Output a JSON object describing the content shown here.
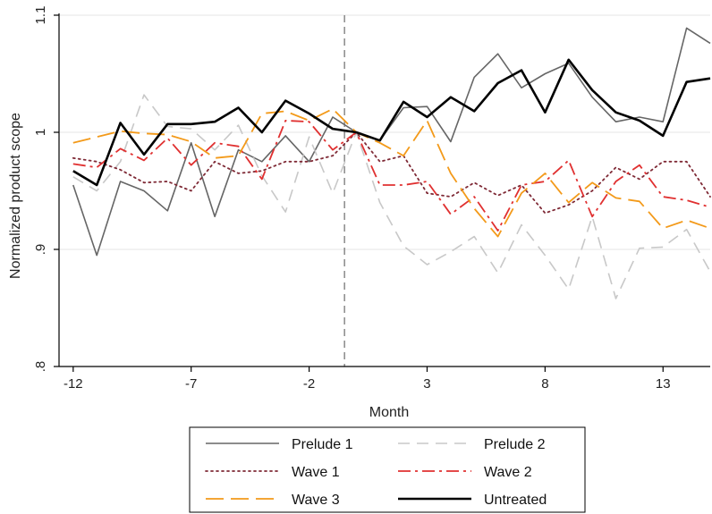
{
  "chart_data": {
    "type": "line",
    "title": "",
    "xlabel": "Month",
    "ylabel": "Normalized product scope",
    "xlim": [
      -12.6,
      15
    ],
    "ylim": [
      0.8,
      1.1
    ],
    "xticks": [
      -12,
      -7,
      -2,
      3,
      8,
      13
    ],
    "xtick_labels": [
      "-12",
      "-7",
      "-2",
      "3",
      "8",
      "13"
    ],
    "yticks": [
      0.8,
      0.9,
      1.0,
      1.1
    ],
    "ytick_labels": [
      ".8",
      ".9",
      "1",
      "1.1"
    ],
    "reference_line_x": -0.5,
    "grid": "horizontal",
    "legend_position": "bottom",
    "x": [
      -12,
      -11,
      -10,
      -9,
      -8,
      -7,
      -6,
      -5,
      -4,
      -3,
      -2,
      -1,
      0,
      1,
      2,
      3,
      4,
      5,
      6,
      7,
      8,
      9,
      10,
      11,
      12,
      13,
      14,
      15
    ],
    "series": [
      {
        "name": "Prelude 1",
        "color": "#666666",
        "style": "solid",
        "values": [
          0.955,
          0.895,
          0.958,
          0.95,
          0.933,
          0.991,
          0.928,
          0.985,
          0.975,
          0.997,
          0.975,
          1.013,
          1.0,
          0.993,
          1.021,
          1.022,
          0.992,
          1.047,
          1.067,
          1.038,
          1.05,
          1.059,
          1.03,
          1.009,
          1.013,
          1.009,
          1.089,
          1.076
        ]
      },
      {
        "name": "Prelude 2",
        "color": "#c8c8c8",
        "style": "dashed",
        "values": [
          0.962,
          0.95,
          0.975,
          1.032,
          1.005,
          1.003,
          0.985,
          1.006,
          0.963,
          0.932,
          0.996,
          0.948,
          1.0,
          0.94,
          0.903,
          0.887,
          0.898,
          0.911,
          0.88,
          0.921,
          0.895,
          0.866,
          0.928,
          0.858,
          0.901,
          0.902,
          0.917,
          0.881
        ]
      },
      {
        "name": "Wave 1",
        "color": "#7f2a36",
        "style": "dotted",
        "values": [
          0.978,
          0.975,
          0.968,
          0.957,
          0.958,
          0.95,
          0.975,
          0.965,
          0.967,
          0.975,
          0.975,
          0.98,
          1.0,
          0.975,
          0.98,
          0.948,
          0.945,
          0.957,
          0.946,
          0.955,
          0.931,
          0.938,
          0.95,
          0.97,
          0.96,
          0.975,
          0.975,
          0.945
        ]
      },
      {
        "name": "Wave 2",
        "color": "#e03030",
        "style": "dashdot",
        "values": [
          0.973,
          0.97,
          0.986,
          0.976,
          0.995,
          0.972,
          0.991,
          0.988,
          0.96,
          1.01,
          1.009,
          0.985,
          1.0,
          0.955,
          0.955,
          0.958,
          0.93,
          0.945,
          0.916,
          0.955,
          0.958,
          0.976,
          0.928,
          0.958,
          0.972,
          0.945,
          0.942,
          0.936
        ]
      },
      {
        "name": "Wave 3",
        "color": "#f39a1a",
        "style": "longdash",
        "values": [
          0.991,
          0.996,
          1.001,
          0.999,
          0.998,
          0.992,
          0.978,
          0.98,
          1.016,
          1.018,
          1.01,
          1.02,
          1.0,
          0.991,
          0.98,
          1.01,
          0.965,
          0.935,
          0.911,
          0.948,
          0.965,
          0.94,
          0.957,
          0.944,
          0.941,
          0.918,
          0.925,
          0.918
        ]
      },
      {
        "name": "Untreated",
        "color": "#000000",
        "style": "solid-bold",
        "values": [
          0.967,
          0.955,
          1.008,
          0.981,
          1.007,
          1.007,
          1.009,
          1.021,
          1.0,
          1.027,
          1.016,
          1.003,
          1.0,
          0.993,
          1.026,
          1.013,
          1.03,
          1.018,
          1.042,
          1.053,
          1.017,
          1.062,
          1.036,
          1.017,
          1.01,
          0.997,
          1.043,
          1.046
        ]
      }
    ]
  }
}
